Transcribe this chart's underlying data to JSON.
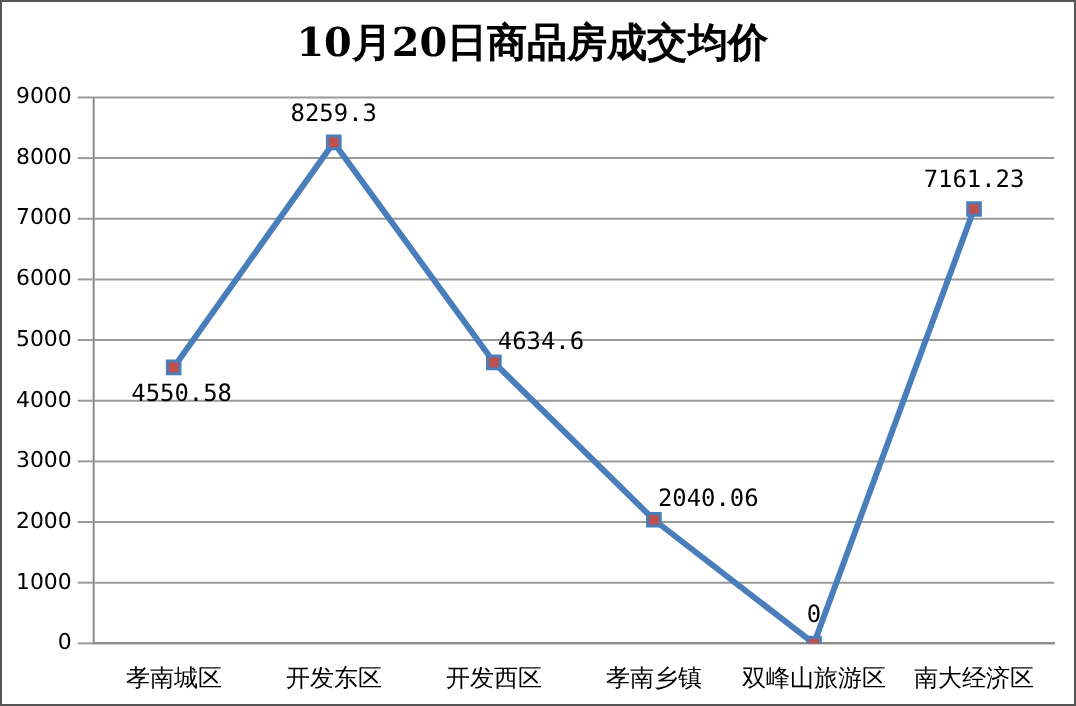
{
  "chart_data": {
    "type": "line",
    "title": "10月20日商品房成交均价",
    "categories": [
      "孝南城区",
      "开发东区",
      "开发西区",
      "孝南乡镇",
      "双峰山旅游区",
      "南大经济区"
    ],
    "series": [
      {
        "color": "#4a7ebb",
        "values": [
          4550.58,
          8259.3,
          4634.6,
          2040.06,
          0,
          7161.23
        ]
      }
    ],
    "value_labels": [
      "4550.58",
      "8259.3",
      "4634.6",
      "2040.06",
      "0",
      "7161.23"
    ],
    "ylim": [
      0,
      9000
    ],
    "yticks": [
      0,
      1000,
      2000,
      3000,
      4000,
      5000,
      6000,
      7000,
      8000,
      9000
    ],
    "grid": "y",
    "legend": false,
    "marker": "square",
    "line_style": "solid"
  }
}
